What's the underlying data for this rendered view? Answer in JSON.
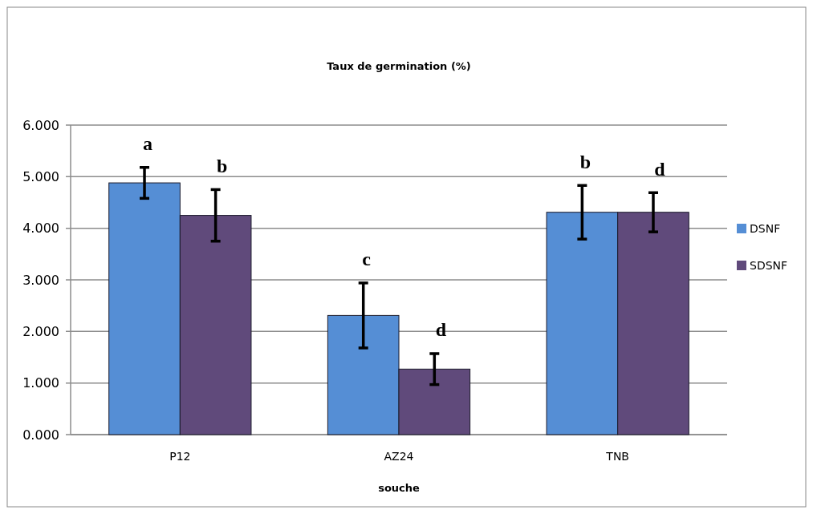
{
  "chart_data": {
    "type": "bar",
    "title": "Taux de germination (%)",
    "xlabel": "souche",
    "categories": [
      "P12",
      "AZ24",
      "TNB"
    ],
    "series": [
      {
        "name": "DSNF",
        "color": "#558ed5",
        "values": [
          4.88,
          2.31,
          4.31
        ],
        "errors": [
          0.3,
          0.63,
          0.52
        ]
      },
      {
        "name": "SDSNF",
        "color": "#604a7b",
        "values": [
          4.25,
          1.27,
          4.31
        ],
        "errors": [
          0.5,
          0.3,
          0.38
        ]
      }
    ],
    "ylim": [
      0,
      6
    ],
    "yticks": [
      {
        "value": 0,
        "label": "0.000"
      },
      {
        "value": 1,
        "label": "1.000"
      },
      {
        "value": 2,
        "label": "2.000"
      },
      {
        "value": 3,
        "label": "3.000"
      },
      {
        "value": 4,
        "label": "4.000"
      },
      {
        "value": 5,
        "label": "5.000"
      },
      {
        "value": 6,
        "label": "6.000"
      }
    ],
    "grid": "y",
    "legend": "right",
    "annotations": [
      "a",
      "b",
      "c",
      "d",
      "b",
      "d"
    ]
  }
}
